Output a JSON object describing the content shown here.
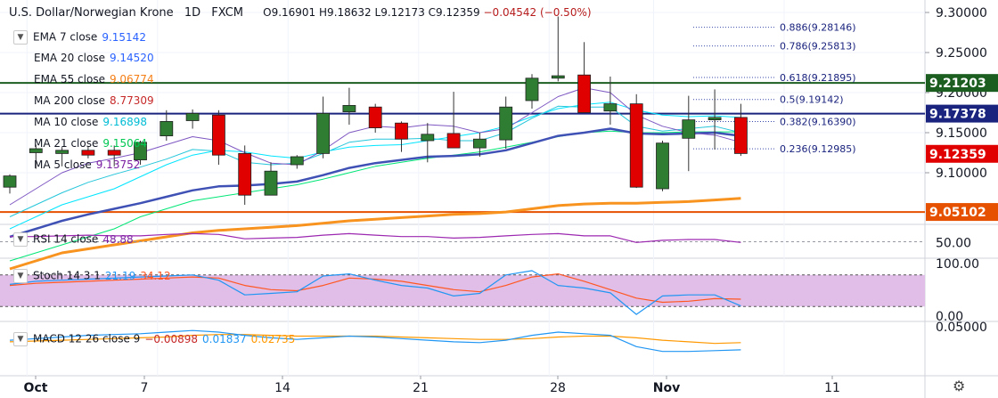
{
  "header": {
    "symbol": "U.S. Dollar/Norwegian Krone",
    "interval": "1D",
    "exchange": "FXCM",
    "open": "O9.16901",
    "high": "H9.18632",
    "low": "L9.12173",
    "close": "C9.12359",
    "change": "−0.04542 (−0.50%)"
  },
  "legend": [
    {
      "label": "EMA 7 close",
      "value": "9.15142",
      "color": "#2962ff",
      "arrow": "▼"
    },
    {
      "label": "EMA 20 close",
      "value": "9.14520",
      "color": "#2962ff",
      "arrow": ""
    },
    {
      "label": "EMA 55 close",
      "value": "9.06774",
      "color": "#f57f17",
      "arrow": ""
    },
    {
      "label": "MA 200 close",
      "value": "8.77309",
      "color": "#c62828",
      "arrow": ""
    },
    {
      "label": "MA 10 close",
      "value": "9.16898",
      "color": "#00bcd4",
      "arrow": ""
    },
    {
      "label": "MA 21 close",
      "value": "9.15064",
      "color": "#00c853",
      "arrow": ""
    },
    {
      "label": "MA 5 close",
      "value": "9.13752",
      "color": "#7b1fa2",
      "arrow": ""
    }
  ],
  "rsi_legend": {
    "label": "RSI 14 close",
    "value": "48.88",
    "color": "#7b1fa2",
    "arrow": "▼"
  },
  "stoch_legend": {
    "label": "Stoch 14 3 1",
    "k": "21.19",
    "d": "34.12",
    "k_color": "#2196f3",
    "d_color": "#ff5722",
    "arrow": "▼"
  },
  "macd_legend": {
    "label": "MACD 12 26 close 9",
    "hist": "−0.00898",
    "macd": "0.01837",
    "signal": "0.02735",
    "hist_color": "#c62828",
    "macd_color": "#2196f3",
    "signal_color": "#ff9800",
    "arrow": "▼"
  },
  "colors": {
    "up": "#2e7d32",
    "down": "#e00000",
    "ema7": "#3f51b5",
    "ema20": "#26a69a",
    "ema55": "#f7931e",
    "ma10": "#00e5ff",
    "ma21": "#00e676",
    "ma5": "#7e57c2",
    "rsi": "#9c27b0",
    "stoch_k": "#2196f3",
    "stoch_d": "#ff5722",
    "stoch_band": "#e1bee7",
    "macd": "#2196f3",
    "signal": "#ff9800"
  },
  "chart_data": {
    "type": "candlestick",
    "x_tick_labels": [
      "Oct",
      "7",
      "14",
      "21",
      "28",
      "Nov",
      "11"
    ],
    "y_tick_labels": [
      "9.30000",
      "9.25000",
      "9.20000",
      "9.15000",
      "9.10000"
    ],
    "ylim": [
      9.04,
      9.31
    ],
    "candles": [
      {
        "o": 9.082,
        "h": 9.098,
        "l": 9.074,
        "c": 9.096
      },
      {
        "o": 9.125,
        "h": 9.135,
        "l": 9.105,
        "c": 9.13
      },
      {
        "o": 9.124,
        "h": 9.132,
        "l": 9.108,
        "c": 9.128
      },
      {
        "o": 9.128,
        "h": 9.133,
        "l": 9.118,
        "c": 9.122
      },
      {
        "o": 9.128,
        "h": 9.134,
        "l": 9.108,
        "c": 9.122
      },
      {
        "o": 9.116,
        "h": 9.14,
        "l": 9.11,
        "c": 9.138
      },
      {
        "o": 9.146,
        "h": 9.178,
        "l": 9.14,
        "c": 9.164
      },
      {
        "o": 9.165,
        "h": 9.179,
        "l": 9.155,
        "c": 9.174
      },
      {
        "o": 9.172,
        "h": 9.178,
        "l": 9.11,
        "c": 9.122
      },
      {
        "o": 9.124,
        "h": 9.134,
        "l": 9.06,
        "c": 9.072
      },
      {
        "o": 9.072,
        "h": 9.113,
        "l": 9.072,
        "c": 9.102
      },
      {
        "o": 9.11,
        "h": 9.122,
        "l": 9.105,
        "c": 9.12
      },
      {
        "o": 9.124,
        "h": 9.195,
        "l": 9.118,
        "c": 9.174
      },
      {
        "o": 9.176,
        "h": 9.206,
        "l": 9.16,
        "c": 9.184
      },
      {
        "o": 9.182,
        "h": 9.186,
        "l": 9.15,
        "c": 9.156
      },
      {
        "o": 9.162,
        "h": 9.164,
        "l": 9.126,
        "c": 9.142
      },
      {
        "o": 9.14,
        "h": 9.162,
        "l": 9.113,
        "c": 9.148
      },
      {
        "o": 9.149,
        "h": 9.201,
        "l": 9.132,
        "c": 9.131
      },
      {
        "o": 9.131,
        "h": 9.15,
        "l": 9.12,
        "c": 9.142
      },
      {
        "o": 9.141,
        "h": 9.195,
        "l": 9.13,
        "c": 9.182
      },
      {
        "o": 9.19,
        "h": 9.223,
        "l": 9.18,
        "c": 9.218
      },
      {
        "o": 9.218,
        "h": 9.295,
        "l": 9.214,
        "c": 9.221
      },
      {
        "o": 9.222,
        "h": 9.263,
        "l": 9.175,
        "c": 9.175
      },
      {
        "o": 9.177,
        "h": 9.22,
        "l": 9.16,
        "c": 9.186
      },
      {
        "o": 9.186,
        "h": 9.198,
        "l": 9.081,
        "c": 9.082
      },
      {
        "o": 9.08,
        "h": 9.14,
        "l": 9.077,
        "c": 9.137
      },
      {
        "o": 9.143,
        "h": 9.196,
        "l": 9.102,
        "c": 9.166
      },
      {
        "o": 9.166,
        "h": 9.204,
        "l": 9.129,
        "c": 9.169
      },
      {
        "o": 9.169,
        "h": 9.186,
        "l": 9.121,
        "c": 9.124
      }
    ],
    "horizontal_levels": [
      {
        "value": 9.21203,
        "label": "9.21203",
        "color": "#1b5e20",
        "kind": "line"
      },
      {
        "value": 9.17378,
        "label": "9.17378",
        "color": "#1a237e",
        "kind": "line"
      },
      {
        "value": 9.12359,
        "label": "9.12359",
        "color": "#e00000",
        "kind": "price"
      },
      {
        "value": 9.05102,
        "label": "9.05102",
        "color": "#e65100",
        "kind": "line"
      }
    ],
    "fibonacci": [
      {
        "ratio": "0.886",
        "value": 9.28146,
        "label": "0.886(9.28146)"
      },
      {
        "ratio": "0.786",
        "value": 9.25813,
        "label": "0.786(9.25813)"
      },
      {
        "ratio": "0.618",
        "value": 9.21895,
        "label": "0.618(9.21895)"
      },
      {
        "ratio": "0.5",
        "value": 9.19142,
        "label": "0.5(9.19142)"
      },
      {
        "ratio": "0.382",
        "value": 9.1639,
        "label": "0.382(9.16390)"
      },
      {
        "ratio": "0.236",
        "value": 9.12985,
        "label": "0.236(9.12985)"
      }
    ],
    "ema7": [
      9.045,
      9.06,
      9.075,
      9.088,
      9.098,
      9.107,
      9.117,
      9.129,
      9.127,
      9.113,
      9.11,
      9.112,
      9.124,
      9.138,
      9.142,
      9.142,
      9.143,
      9.14,
      9.14,
      9.15,
      9.168,
      9.183,
      9.182,
      9.182,
      9.158,
      9.152,
      9.155,
      9.158,
      9.15
    ],
    "ema20": [
      9.02,
      9.03,
      9.04,
      9.048,
      9.055,
      9.062,
      9.07,
      9.078,
      9.083,
      9.084,
      9.086,
      9.089,
      9.097,
      9.106,
      9.112,
      9.116,
      9.12,
      9.121,
      9.123,
      9.128,
      9.137,
      9.146,
      9.15,
      9.155,
      9.149,
      9.148,
      9.149,
      9.15,
      9.146
    ],
    "ema55": [
      8.98,
      8.99,
      9.0,
      9.005,
      9.01,
      9.015,
      9.02,
      9.025,
      9.028,
      9.03,
      9.032,
      9.034,
      9.037,
      9.04,
      9.042,
      9.044,
      9.046,
      9.048,
      9.049,
      9.051,
      9.055,
      9.059,
      9.061,
      9.062,
      9.062,
      9.063,
      9.064,
      9.066,
      9.068
    ],
    "ma10": [
      9.03,
      9.045,
      9.06,
      9.07,
      9.08,
      9.095,
      9.11,
      9.122,
      9.128,
      9.126,
      9.121,
      9.118,
      9.126,
      9.132,
      9.134,
      9.135,
      9.14,
      9.145,
      9.15,
      9.158,
      9.17,
      9.18,
      9.185,
      9.188,
      9.178,
      9.172,
      9.17,
      9.171,
      9.169
    ],
    "ma21": [
      8.99,
      9.0,
      9.01,
      9.02,
      9.03,
      9.045,
      9.055,
      9.065,
      9.07,
      9.075,
      9.08,
      9.085,
      9.092,
      9.1,
      9.108,
      9.113,
      9.118,
      9.122,
      9.126,
      9.132,
      9.138,
      9.145,
      9.15,
      9.152,
      9.15,
      9.15,
      9.151,
      9.151,
      9.151
    ],
    "ma5": [
      9.06,
      9.08,
      9.1,
      9.112,
      9.118,
      9.125,
      9.135,
      9.145,
      9.14,
      9.125,
      9.112,
      9.11,
      9.128,
      9.15,
      9.158,
      9.156,
      9.16,
      9.158,
      9.15,
      9.155,
      9.175,
      9.195,
      9.206,
      9.2,
      9.172,
      9.158,
      9.15,
      9.147,
      9.138
    ],
    "rsi": {
      "levels": [
        "50.00"
      ],
      "ylim": [
        30,
        70
      ],
      "values": [
        57,
        57,
        58,
        59,
        58,
        58,
        60,
        61,
        60,
        54,
        55,
        56,
        59,
        61,
        59,
        57,
        57,
        55,
        56,
        58,
        60,
        61,
        58,
        58,
        49,
        52,
        53,
        53,
        49
      ]
    },
    "stoch": {
      "levels": [
        "100.00",
        "0.00"
      ],
      "band": [
        80,
        20
      ],
      "ylim": [
        -5,
        105
      ],
      "k": [
        62,
        68,
        70,
        72,
        74,
        76,
        78,
        80,
        70,
        42,
        45,
        48,
        78,
        82,
        70,
        60,
        55,
        40,
        45,
        80,
        88,
        60,
        55,
        46,
        5,
        40,
        42,
        42,
        21
      ],
      "d": [
        60,
        64,
        66,
        68,
        70,
        72,
        74,
        76,
        74,
        60,
        52,
        50,
        60,
        74,
        72,
        68,
        60,
        52,
        48,
        60,
        76,
        82,
        68,
        52,
        36,
        28,
        30,
        35,
        34
      ]
    },
    "macd": {
      "levels": [
        "0.05000"
      ],
      "ylim": [
        -0.012,
        0.05
      ],
      "macd": [
        0.03,
        0.032,
        0.034,
        0.036,
        0.037,
        0.038,
        0.04,
        0.042,
        0.04,
        0.036,
        0.033,
        0.031,
        0.033,
        0.035,
        0.034,
        0.032,
        0.03,
        0.028,
        0.027,
        0.03,
        0.036,
        0.04,
        0.038,
        0.036,
        0.022,
        0.016,
        0.016,
        0.017,
        0.018
      ],
      "signal": [
        0.028,
        0.029,
        0.03,
        0.031,
        0.032,
        0.033,
        0.034,
        0.036,
        0.037,
        0.037,
        0.036,
        0.035,
        0.035,
        0.035,
        0.035,
        0.034,
        0.033,
        0.032,
        0.031,
        0.031,
        0.032,
        0.034,
        0.035,
        0.035,
        0.033,
        0.03,
        0.028,
        0.026,
        0.027
      ]
    }
  }
}
